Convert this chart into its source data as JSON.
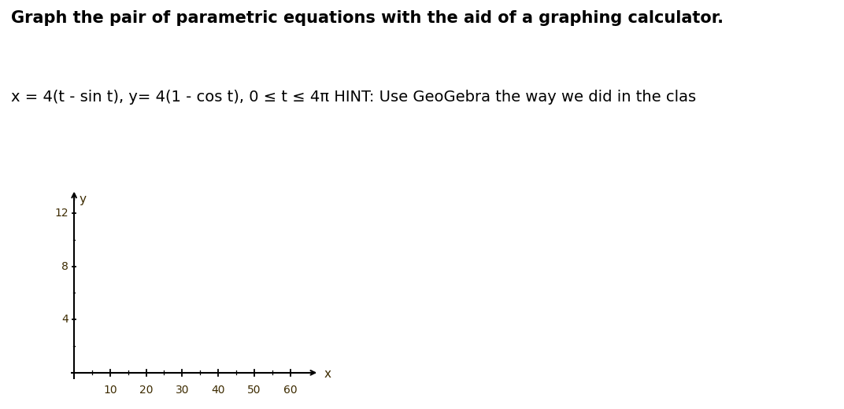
{
  "title_line1": "Graph the pair of parametric equations with the aid of a graphing calculator.",
  "title_line2": "x = 4(t - sin t), y= 4(1 - cos t), 0 ≤ t ≤ 4π HINT: Use GeoGebra the way we did in the clas",
  "title_fontsize": 15,
  "subtitle_fontsize": 14,
  "background_color": "#ffffff",
  "axis_color": "#000000",
  "label_color_xy": "#3d2b00",
  "label_color_numbers": "#3d2b00",
  "xlim_data": [
    0,
    70
  ],
  "ylim_data": [
    0,
    14
  ],
  "xticks": [
    10,
    20,
    30,
    40,
    50,
    60
  ],
  "yticks": [
    4,
    8,
    12
  ],
  "x_label": "x",
  "y_label": "y"
}
